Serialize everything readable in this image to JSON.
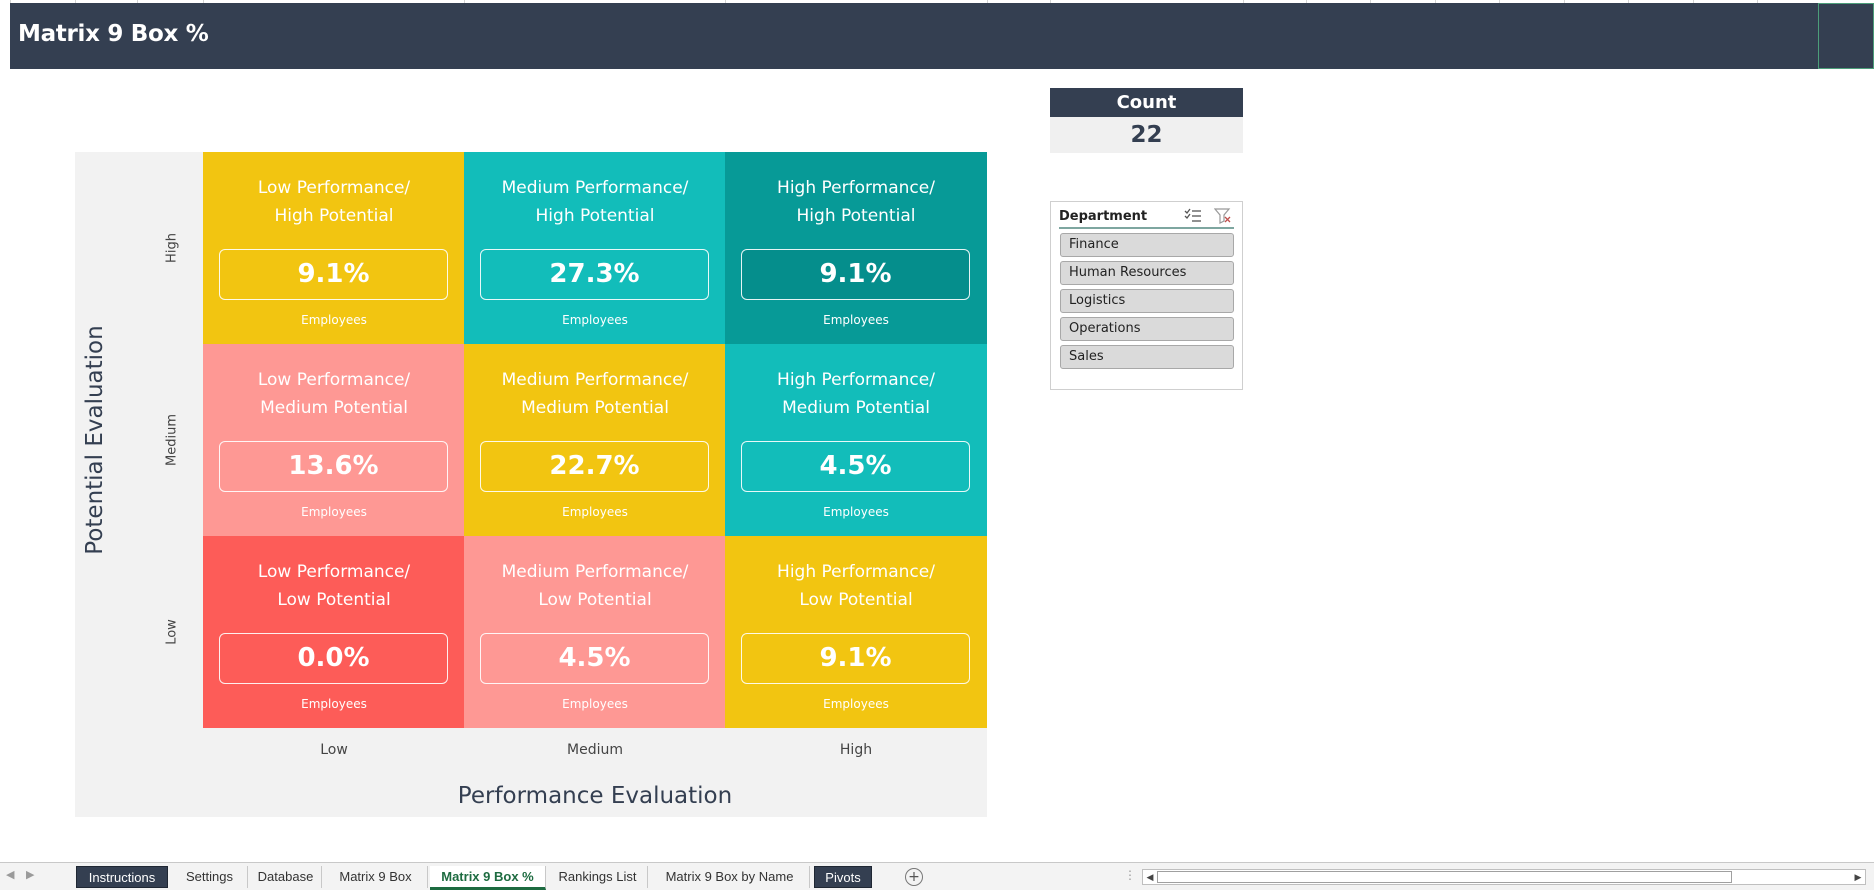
{
  "banner": {
    "title": "Matrix 9 Box %"
  },
  "count_card": {
    "label": "Count",
    "value": "22"
  },
  "slicer": {
    "title": "Department",
    "items": [
      "Finance",
      "Human Resources",
      "Logistics",
      "Operations",
      "Sales"
    ]
  },
  "matrix": {
    "y_axis_title": "Potential Evaluation",
    "x_axis_title": "Performance Evaluation",
    "y_ticks": [
      "High",
      "Medium",
      "Low"
    ],
    "x_ticks": [
      "Low",
      "Medium",
      "High"
    ],
    "cells": [
      {
        "title": "Low Performance/\nHigh Potential",
        "value": "9.1%",
        "foot": "Employees",
        "color": "#f2c511",
        "box_fill": "#f2c511"
      },
      {
        "title": "Medium Performance/\nHigh Potential",
        "value": "27.3%",
        "foot": "Employees",
        "color": "#12bdba",
        "box_fill": "#12bdba"
      },
      {
        "title": "High Performance/\nHigh Potential",
        "value": "9.1%",
        "foot": "Employees",
        "color": "#079a97",
        "box_fill": "#058e8c"
      },
      {
        "title": "Low Performance/\nMedium Potential",
        "value": "13.6%",
        "foot": "Employees",
        "color": "#fe9894",
        "box_fill": "#fe9894"
      },
      {
        "title": "Medium Performance/\nMedium Potential",
        "value": "22.7%",
        "foot": "Employees",
        "color": "#f2c511",
        "box_fill": "#f2c511"
      },
      {
        "title": "High Performance/\nMedium Potential",
        "value": "4.5%",
        "foot": "Employees",
        "color": "#12bdba",
        "box_fill": "#12bdba"
      },
      {
        "title": "Low Performance/\nLow Potential",
        "value": "0.0%",
        "foot": "Employees",
        "color": "#fd5c58",
        "box_fill": "#fd5c58"
      },
      {
        "title": "Medium Performance/\nLow Potential",
        "value": "4.5%",
        "foot": "Employees",
        "color": "#fe9894",
        "box_fill": "#fe9894"
      },
      {
        "title": "High Performance/\nLow Potential",
        "value": "9.1%",
        "foot": "Employees",
        "color": "#f2c511",
        "box_fill": "#f2c511"
      }
    ]
  },
  "sheet_tabs": [
    {
      "label": "Instructions",
      "style": "dark"
    },
    {
      "label": "Settings",
      "style": "normal"
    },
    {
      "label": "Database",
      "style": "normal"
    },
    {
      "label": "Matrix 9 Box",
      "style": "normal"
    },
    {
      "label": "Matrix 9 Box %",
      "style": "active"
    },
    {
      "label": "Rankings List",
      "style": "normal"
    },
    {
      "label": "Matrix 9 Box by Name",
      "style": "normal"
    },
    {
      "label": "Pivots",
      "style": "dark"
    }
  ],
  "colors": {
    "banner": "#343f51",
    "accent_green": "#1d6b40",
    "yellow": "#f2c511",
    "teal": "#12bdba",
    "dark_teal": "#079a97",
    "pink": "#fe9894",
    "red": "#fd5c58"
  },
  "icons": [
    "multi-select-icon",
    "clear-filter-icon",
    "add-sheet-icon",
    "scroll-left-icon",
    "scroll-right-icon"
  ]
}
